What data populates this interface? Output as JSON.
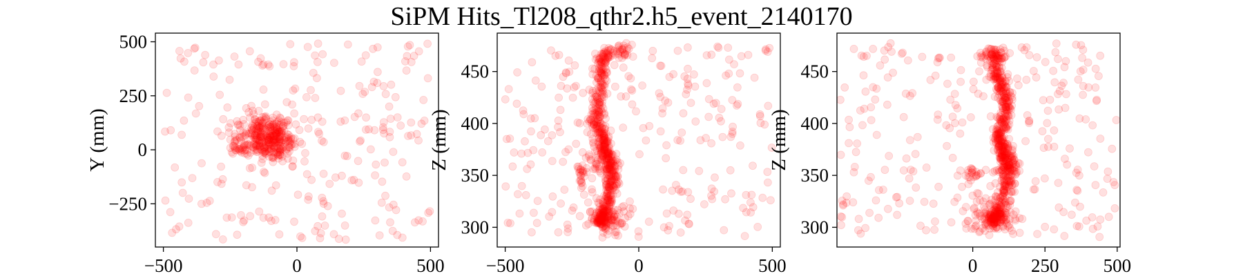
{
  "figure": {
    "title": "SiPM Hits_Tl208_qthr2.h5_event_2140170",
    "marker_color": "#ff0000",
    "marker_alpha": 0.12
  },
  "chart_data": [
    {
      "type": "scatter",
      "xlabel": "",
      "ylabel": "Y (mm)",
      "xlim": [
        -530,
        530
      ],
      "ylim": [
        -450,
        540
      ],
      "xticks": [
        -500,
        0,
        500
      ],
      "xtick_labels": [
        "−500",
        "0",
        "500"
      ],
      "yticks": [
        -250,
        0,
        250,
        500
      ],
      "ytick_labels": [
        "−250",
        "0",
        "250",
        "500"
      ],
      "clusters": [
        {
          "cx": -120,
          "cy": 60,
          "sx": 55,
          "sy": 55,
          "n": 260
        },
        {
          "cx": -80,
          "cy": 20,
          "sx": 35,
          "sy": 45,
          "n": 90
        },
        {
          "cx": -210,
          "cy": 10,
          "sx": 20,
          "sy": 20,
          "n": 25
        }
      ],
      "scatter": {
        "x": [
          -500,
          500
        ],
        "y": [
          -430,
          500
        ],
        "n": 230
      }
    },
    {
      "type": "scatter",
      "xlabel": "",
      "ylabel": "Z (mm)",
      "xlim": [
        -530,
        530
      ],
      "ylim": [
        281,
        487
      ],
      "xticks": [
        -500,
        0,
        500
      ],
      "xtick_labels": [
        "−500",
        "0",
        "500"
      ],
      "yticks": [
        300,
        350,
        400,
        450
      ],
      "ytick_labels": [
        "300",
        "350",
        "400",
        "450"
      ],
      "track": {
        "x": [
          -150,
          -130,
          -115,
          -95,
          -110,
          -125,
          -130,
          -160,
          -150,
          -140,
          -120
        ],
        "y": [
          305,
          312,
          330,
          348,
          362,
          372,
          385,
          400,
          420,
          450,
          470
        ]
      },
      "clusters": [
        {
          "cx": -120,
          "cy": 308,
          "sx": 35,
          "sy": 8,
          "n": 90
        },
        {
          "cx": -80,
          "cy": 468,
          "sx": 25,
          "sy": 4,
          "n": 40
        },
        {
          "cx": -215,
          "cy": 350,
          "sx": 15,
          "sy": 6,
          "n": 20
        },
        {
          "cx": -160,
          "cy": 363,
          "sx": 15,
          "sy": 6,
          "n": 20
        }
      ],
      "scatter": {
        "x": [
          -500,
          500
        ],
        "y": [
          290,
          478
        ],
        "n": 260
      }
    },
    {
      "type": "scatter",
      "xlabel": "",
      "ylabel": "Z (mm)",
      "xlim": [
        -470,
        510
      ],
      "ylim": [
        281,
        487
      ],
      "xticks": [
        0,
        250,
        500
      ],
      "xtick_labels": [
        "0",
        "250",
        "500"
      ],
      "yticks": [
        300,
        350,
        400,
        450
      ],
      "ytick_labels": [
        "300",
        "350",
        "400",
        "450"
      ],
      "track": {
        "x": [
          60,
          90,
          110,
          120,
          130,
          100,
          90,
          110,
          120,
          100,
          80,
          75
        ],
        "y": [
          305,
          312,
          330,
          350,
          362,
          372,
          385,
          400,
          420,
          435,
          450,
          470
        ]
      },
      "clusters": [
        {
          "cx": 60,
          "cy": 308,
          "sx": 45,
          "sy": 8,
          "n": 100
        },
        {
          "cx": 70,
          "cy": 467,
          "sx": 22,
          "sy": 4,
          "n": 40
        },
        {
          "cx": 0,
          "cy": 350,
          "sx": 12,
          "sy": 5,
          "n": 20
        },
        {
          "cx": 115,
          "cy": 362,
          "sx": 15,
          "sy": 6,
          "n": 20
        }
      ],
      "scatter": {
        "x": [
          -460,
          500
        ],
        "y": [
          290,
          478
        ],
        "n": 260
      }
    }
  ]
}
